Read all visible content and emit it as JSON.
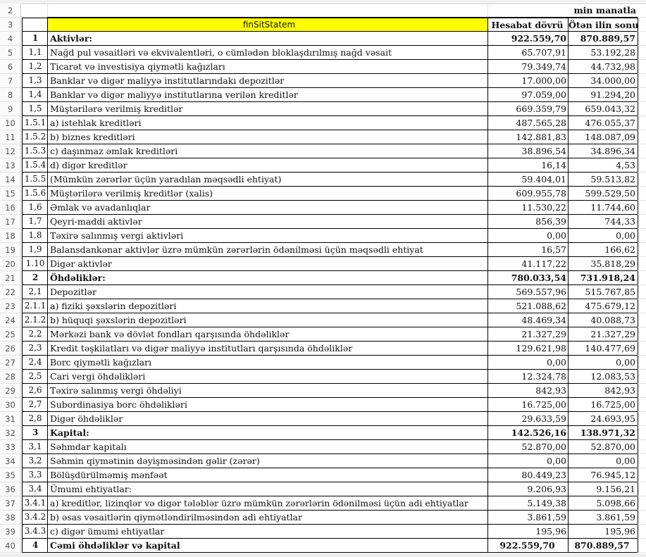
{
  "unit_label": "min manatla",
  "header": {
    "title": "finSitStatem",
    "col_current": "Hesabat dövrü",
    "col_previous": "Ötən ilin sonu",
    "title_bg": "#ffff00"
  },
  "rows": [
    {
      "n": "4",
      "code": "1",
      "label": "Aktivlər:",
      "cur": "922.559,70",
      "prev": "870.889,57",
      "bold": true
    },
    {
      "n": "5",
      "code": "1,1",
      "label": "Nağd pul vəsaitləri və  ekvivalentləri, o cümlədən bloklaşdırılmış nağd vəsait",
      "cur": "65.707,91",
      "prev": "53.192,28"
    },
    {
      "n": "6",
      "code": "1,2",
      "label": "Ticarət və investisiya qiymətli kağızları",
      "cur": "79.349,74",
      "prev": "44.732,98"
    },
    {
      "n": "7",
      "code": "1,3",
      "label": "Banklar və digər maliyyə institutlarındakı depozitlər",
      "cur": "17.000,00",
      "prev": "34.000,00"
    },
    {
      "n": "8",
      "code": "1,4",
      "label": "Banklar və digər maliyyə institutlarına verilən kreditlər",
      "cur": "97.059,00",
      "prev": "91.294,20"
    },
    {
      "n": "9",
      "code": "1,5",
      "label": "Müştərilərə verilmiş kreditlər",
      "cur": "669.359,79",
      "prev": "659.043,32"
    },
    {
      "n": "10",
      "code": "1.5.1",
      "label": "a) istehlak kreditləri",
      "cur": "487.565,28",
      "prev": "476.055,37"
    },
    {
      "n": "11",
      "code": "1.5.2",
      "label": "b) biznes kreditləri",
      "cur": "142.881,83",
      "prev": "148.087,09"
    },
    {
      "n": "12",
      "code": "1.5.3",
      "label": "c) daşınmaz əmlak kreditləri",
      "cur": "38.896,54",
      "prev": "34.896,34"
    },
    {
      "n": "13",
      "code": "1.5.4",
      "label": "d) digər kreditlər",
      "cur": "16,14",
      "prev": "4,53"
    },
    {
      "n": "14",
      "code": "1.5.5",
      "label": "(Mümkün zərərlər üçün yaradılan məqsədli ehtiyat)",
      "cur": "59.404,01",
      "prev": "59.513,82"
    },
    {
      "n": "15",
      "code": "1.5.6",
      "label": "Müştərilərə verilmiş kreditlər (xalis)",
      "cur": "609.955,78",
      "prev": "599.529,50"
    },
    {
      "n": "16",
      "code": "1,6",
      "label": "Əmlak və avadanlıqlar",
      "cur": "11.530,22",
      "prev": "11.744,60"
    },
    {
      "n": "17",
      "code": "1,7",
      "label": "Qeyri-maddi aktivlər",
      "cur": "856,39",
      "prev": "744,33"
    },
    {
      "n": "18",
      "code": "1,8",
      "label": "Təxirə salınmış vergi aktivləri",
      "cur": "0,00",
      "prev": "0,00"
    },
    {
      "n": "19",
      "code": "1,9",
      "label": "Balansdankənar aktivlər üzrə mümkün zərərlərin ödənilməsi üçün məqsədli ehtiyat",
      "cur": "16,57",
      "prev": "166,62"
    },
    {
      "n": "20",
      "code": "1.10",
      "label": "Digər aktivlər",
      "cur": "41.117,22",
      "prev": "35.818,29"
    },
    {
      "n": "21",
      "code": "2",
      "label": "Öhdəliklər:",
      "cur": "780.033,54",
      "prev": "731.918,24",
      "bold": true
    },
    {
      "n": "22",
      "code": "2,1",
      "label": "Depozitlər",
      "cur": "569.557,96",
      "prev": "515.767,85"
    },
    {
      "n": "23",
      "code": "2.1.1",
      "label": "a) fiziki şəxslərin depozitləri",
      "cur": "521.088,62",
      "prev": "475.679,12"
    },
    {
      "n": "24",
      "code": "2.1.2",
      "label": "b) hüquqi şəxslərin depozitləri",
      "cur": "48.469,34",
      "prev": "40.088,73"
    },
    {
      "n": "25",
      "code": "2,2",
      "label": "Mərkəzi bank və dövlət fondları qarşısında öhdəliklər",
      "cur": "21.327,29",
      "prev": "21.327,29"
    },
    {
      "n": "26",
      "code": "2,3",
      "label": "Kredit təşkilatları və digər maliyyə institutları qarşısında öhdəliklər",
      "cur": "129.621,98",
      "prev": "140.477,69"
    },
    {
      "n": "27",
      "code": "2,4",
      "label": "Borc qiymətli kağızları",
      "cur": "0,00",
      "prev": "0,00"
    },
    {
      "n": "28",
      "code": "2,5",
      "label": "Cari vergi öhdəlikləri",
      "cur": "12.324,78",
      "prev": "12.083,53"
    },
    {
      "n": "29",
      "code": "2,6",
      "label": "Təxirə salınmış vergi öhdəliyi",
      "cur": "842,93",
      "prev": "842,93"
    },
    {
      "n": "30",
      "code": "2,7",
      "label": "Subordinasiya borc öhdəlikləri",
      "cur": "16.725,00",
      "prev": "16.725,00"
    },
    {
      "n": "31",
      "code": "2,8",
      "label": "Digər öhdəliklər",
      "cur": "29.633,59",
      "prev": "24.693,95"
    },
    {
      "n": "32",
      "code": "3",
      "label": "Kapital:",
      "cur": "142.526,16",
      "prev": "138.971,32",
      "bold": true
    },
    {
      "n": "33",
      "code": "3,1",
      "label": "Səhmdar kapitalı",
      "cur": "52.870,00",
      "prev": "52.870,00"
    },
    {
      "n": "34",
      "code": "3,2",
      "label": "Səhmin qiymətinin dəyişməsindən gəlir (zərər)",
      "cur": "0,00",
      "prev": "0,00"
    },
    {
      "n": "35",
      "code": "3,3",
      "label": "Bölüşdürülməmiş mənfəət",
      "cur": "80.449,23",
      "prev": "76.945,12"
    },
    {
      "n": "36",
      "code": "3,4",
      "label": "Ümumi ehtiyatlar:",
      "cur": "9.206,93",
      "prev": "9.156,21"
    },
    {
      "n": "37",
      "code": "3.4.1",
      "label": "a) kreditlər, lizinqlər və digər tələblər üzrə mümkün zərərlərin ödənilməsi üçün adi ehtiyatlar",
      "cur": "5.149,38",
      "prev": "5.098,66"
    },
    {
      "n": "38",
      "code": "3.4.2",
      "label": "b) əsas vəsaitlərin qiymətləndirilməsindən adi ehtiyatlar",
      "cur": "3.861,59",
      "prev": "3.861,59"
    },
    {
      "n": "39",
      "code": "3.4.3",
      "label": "c) digər ümumi ehtiyatlar",
      "cur": "195,96",
      "prev": "195,96"
    },
    {
      "n": "40",
      "code": "4",
      "label": "Cəmi öhdəliklər və kapital",
      "cur": "922.559,70",
      "prev": "870.889,57",
      "bold": true
    }
  ]
}
